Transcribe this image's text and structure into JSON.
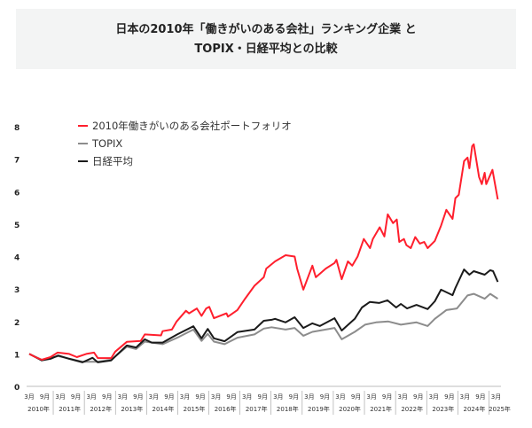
{
  "chart_data": {
    "type": "line",
    "title": [
      "日本の2010年「働きがいのある会社」ランキング企業 と",
      "TOPIX・日経平均との比較"
    ],
    "xlabel": "",
    "ylabel": "",
    "ylim": [
      0,
      8
    ],
    "xlim": [
      2010.17,
      2025.2
    ],
    "yticks": [
      "0",
      "1",
      "2",
      "3",
      "4",
      "5",
      "6",
      "7",
      "8"
    ],
    "xtick_months": [
      "3月",
      "9月"
    ],
    "xtick_last_month": "3月",
    "xtick_years": [
      "2010年",
      "2011年",
      "2012年",
      "2013年",
      "2014年",
      "2015年",
      "2016年",
      "2017年",
      "2018年",
      "2019年",
      "2020年",
      "2021年",
      "2022年",
      "2023年",
      "2024年",
      "2025年"
    ],
    "legend_position": "top-left",
    "grid": false,
    "series": [
      {
        "name": "2010年働きがいのある会社ポートフォリオ",
        "color": "#ff1f2d",
        "x": [
          2010.17,
          2010.37,
          2010.57,
          2010.85,
          2011.08,
          2011.45,
          2011.7,
          2012.0,
          2012.25,
          2012.37,
          2012.8,
          2012.93,
          2013.3,
          2013.75,
          2013.88,
          2014.4,
          2014.45,
          2014.75,
          2014.9,
          2015.2,
          2015.3,
          2015.55,
          2015.7,
          2015.85,
          2015.95,
          2016.1,
          2016.5,
          2016.55,
          2016.85,
          2017.1,
          2017.4,
          2017.7,
          2017.78,
          2018.06,
          2018.4,
          2018.69,
          2018.77,
          2018.97,
          2019.26,
          2019.37,
          2019.69,
          2019.97,
          2020.03,
          2020.2,
          2020.4,
          2020.54,
          2020.71,
          2020.91,
          2021.11,
          2021.2,
          2021.42,
          2021.57,
          2021.68,
          2021.85,
          2021.97,
          2022.05,
          2022.2,
          2022.28,
          2022.42,
          2022.56,
          2022.71,
          2022.85,
          2022.96,
          2023.19,
          2023.39,
          2023.56,
          2023.76,
          2023.85,
          2023.96,
          2024.13,
          2024.24,
          2024.3,
          2024.39,
          2024.44,
          2024.61,
          2024.7,
          2024.79,
          2024.84,
          2025.04,
          2025.21
        ],
        "values": [
          1.0,
          0.9,
          0.82,
          0.9,
          1.04,
          1.0,
          0.9,
          1.0,
          1.04,
          0.87,
          0.87,
          1.07,
          1.37,
          1.4,
          1.6,
          1.57,
          1.7,
          1.75,
          2.0,
          2.33,
          2.25,
          2.4,
          2.17,
          2.4,
          2.45,
          2.1,
          2.25,
          2.15,
          2.35,
          2.7,
          3.1,
          3.36,
          3.63,
          3.85,
          4.04,
          4.0,
          3.63,
          2.98,
          3.72,
          3.36,
          3.63,
          3.8,
          3.9,
          3.3,
          3.85,
          3.72,
          4.0,
          4.54,
          4.26,
          4.54,
          4.9,
          4.62,
          5.3,
          5.03,
          5.14,
          4.45,
          4.54,
          4.35,
          4.26,
          4.6,
          4.4,
          4.45,
          4.26,
          4.48,
          4.95,
          5.44,
          5.16,
          5.8,
          5.9,
          6.94,
          7.05,
          6.72,
          7.4,
          7.46,
          6.45,
          6.23,
          6.58,
          6.23,
          6.67,
          5.76
        ]
      },
      {
        "name": "TOPIX",
        "color": "#8c8c8c",
        "x": [
          2010.17,
          2010.57,
          2011.1,
          2011.88,
          2012.37,
          2012.8,
          2013.3,
          2013.6,
          2013.88,
          2014.45,
          2014.92,
          2015.44,
          2015.7,
          2015.9,
          2016.1,
          2016.44,
          2016.85,
          2017.4,
          2017.7,
          2017.95,
          2018.4,
          2018.69,
          2018.97,
          2019.26,
          2019.97,
          2020.2,
          2020.62,
          2020.95,
          2021.3,
          2021.7,
          2022.1,
          2022.6,
          2022.96,
          2023.19,
          2023.56,
          2023.9,
          2024.24,
          2024.44,
          2024.79,
          2024.97,
          2025.21
        ],
        "values": [
          1.0,
          0.82,
          0.93,
          0.76,
          0.76,
          0.82,
          1.22,
          1.15,
          1.38,
          1.3,
          1.5,
          1.75,
          1.4,
          1.62,
          1.38,
          1.3,
          1.5,
          1.6,
          1.78,
          1.82,
          1.75,
          1.8,
          1.56,
          1.68,
          1.8,
          1.45,
          1.68,
          1.9,
          1.97,
          2.0,
          1.9,
          1.97,
          1.86,
          2.08,
          2.35,
          2.4,
          2.8,
          2.85,
          2.7,
          2.85,
          2.7
        ]
      },
      {
        "name": "日経平均",
        "color": "#1a1a1a",
        "x": [
          2010.17,
          2010.57,
          2010.85,
          2011.1,
          2011.45,
          2011.88,
          2012.2,
          2012.37,
          2012.8,
          2013.3,
          2013.6,
          2013.88,
          2014.1,
          2014.45,
          2014.92,
          2015.44,
          2015.7,
          2015.9,
          2016.1,
          2016.44,
          2016.85,
          2017.4,
          2017.7,
          2017.95,
          2018.06,
          2018.4,
          2018.69,
          2018.97,
          2019.26,
          2019.5,
          2019.97,
          2020.2,
          2020.62,
          2020.85,
          2021.1,
          2021.4,
          2021.67,
          2021.95,
          2022.1,
          2022.3,
          2022.6,
          2022.96,
          2023.19,
          2023.39,
          2023.76,
          2023.85,
          2024.13,
          2024.3,
          2024.44,
          2024.79,
          2024.97,
          2025.06,
          2025.21
        ],
        "values": [
          1.0,
          0.8,
          0.85,
          0.95,
          0.85,
          0.74,
          0.88,
          0.74,
          0.8,
          1.26,
          1.2,
          1.45,
          1.35,
          1.35,
          1.6,
          1.85,
          1.48,
          1.77,
          1.48,
          1.39,
          1.67,
          1.75,
          2.02,
          2.05,
          2.08,
          1.97,
          2.13,
          1.8,
          1.94,
          1.86,
          2.1,
          1.72,
          2.08,
          2.43,
          2.6,
          2.57,
          2.65,
          2.43,
          2.54,
          2.4,
          2.51,
          2.38,
          2.62,
          2.98,
          2.81,
          3.03,
          3.6,
          3.44,
          3.55,
          3.44,
          3.58,
          3.55,
          3.22
        ]
      }
    ]
  }
}
